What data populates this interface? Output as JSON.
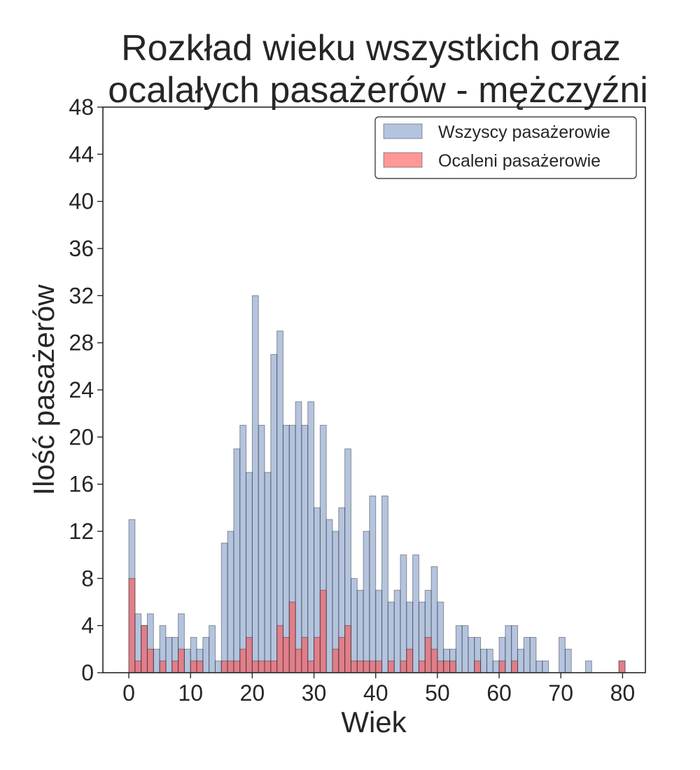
{
  "chart_data": {
    "type": "bar",
    "title_lines": [
      "Rozkład wieku wszystkich oraz",
      "ocalałych pasażerów - mężczyźni"
    ],
    "xlabel": "Wiek",
    "ylabel": "Ilość pasażerów",
    "xlim": [
      -4.2,
      83.7
    ],
    "ylim": [
      0,
      48
    ],
    "xticks": [
      0,
      10,
      20,
      30,
      40,
      50,
      60,
      70,
      80
    ],
    "yticks": [
      0,
      4,
      8,
      12,
      16,
      20,
      24,
      28,
      32,
      36,
      40,
      44,
      48
    ],
    "bin_width": 1.0,
    "legend": {
      "position": "top-right"
    },
    "grid": false,
    "series": [
      {
        "name": "Wszyscy pasażerowie",
        "color": "#4c72b0",
        "bins": [
          {
            "x": 0,
            "y": 13
          },
          {
            "x": 1,
            "y": 5
          },
          {
            "x": 2,
            "y": 4
          },
          {
            "x": 3,
            "y": 5
          },
          {
            "x": 4,
            "y": 2
          },
          {
            "x": 5,
            "y": 4
          },
          {
            "x": 6,
            "y": 3
          },
          {
            "x": 7,
            "y": 3
          },
          {
            "x": 8,
            "y": 5
          },
          {
            "x": 9,
            "y": 2
          },
          {
            "x": 10,
            "y": 3
          },
          {
            "x": 11,
            "y": 2
          },
          {
            "x": 12,
            "y": 3
          },
          {
            "x": 13,
            "y": 4
          },
          {
            "x": 14,
            "y": 1
          },
          {
            "x": 15,
            "y": 11
          },
          {
            "x": 16,
            "y": 12
          },
          {
            "x": 17,
            "y": 19
          },
          {
            "x": 18,
            "y": 21
          },
          {
            "x": 19,
            "y": 17
          },
          {
            "x": 20,
            "y": 32
          },
          {
            "x": 21,
            "y": 21
          },
          {
            "x": 22,
            "y": 17
          },
          {
            "x": 23,
            "y": 27
          },
          {
            "x": 24,
            "y": 29
          },
          {
            "x": 25,
            "y": 21
          },
          {
            "x": 26,
            "y": 21
          },
          {
            "x": 27,
            "y": 23
          },
          {
            "x": 28,
            "y": 21
          },
          {
            "x": 29,
            "y": 23
          },
          {
            "x": 30,
            "y": 14
          },
          {
            "x": 31,
            "y": 21
          },
          {
            "x": 32,
            "y": 13
          },
          {
            "x": 33,
            "y": 12
          },
          {
            "x": 34,
            "y": 14
          },
          {
            "x": 35,
            "y": 19
          },
          {
            "x": 36,
            "y": 8
          },
          {
            "x": 37,
            "y": 7
          },
          {
            "x": 38,
            "y": 12
          },
          {
            "x": 39,
            "y": 15
          },
          {
            "x": 40,
            "y": 7
          },
          {
            "x": 41,
            "y": 15
          },
          {
            "x": 42,
            "y": 6
          },
          {
            "x": 43,
            "y": 7
          },
          {
            "x": 44,
            "y": 10
          },
          {
            "x": 45,
            "y": 6
          },
          {
            "x": 46,
            "y": 10
          },
          {
            "x": 47,
            "y": 6
          },
          {
            "x": 48,
            "y": 7
          },
          {
            "x": 49,
            "y": 9
          },
          {
            "x": 50,
            "y": 6
          },
          {
            "x": 51,
            "y": 2
          },
          {
            "x": 52,
            "y": 2
          },
          {
            "x": 53,
            "y": 4
          },
          {
            "x": 54,
            "y": 4
          },
          {
            "x": 55,
            "y": 3
          },
          {
            "x": 56,
            "y": 3
          },
          {
            "x": 57,
            "y": 2
          },
          {
            "x": 58,
            "y": 2
          },
          {
            "x": 59,
            "y": 1
          },
          {
            "x": 60,
            "y": 3
          },
          {
            "x": 61,
            "y": 4
          },
          {
            "x": 62,
            "y": 4
          },
          {
            "x": 63,
            "y": 2
          },
          {
            "x": 64,
            "y": 3
          },
          {
            "x": 65,
            "y": 3
          },
          {
            "x": 66,
            "y": 1
          },
          {
            "x": 67,
            "y": 1
          },
          {
            "x": 69.7,
            "y": 3
          },
          {
            "x": 70.7,
            "y": 2
          },
          {
            "x": 74,
            "y": 1
          },
          {
            "x": 79.4,
            "y": 1
          }
        ]
      },
      {
        "name": "Ocaleni pasażerowie",
        "color": "#ff4d4d",
        "bins": [
          {
            "x": 0,
            "y": 8
          },
          {
            "x": 1,
            "y": 1
          },
          {
            "x": 2,
            "y": 4
          },
          {
            "x": 3,
            "y": 2
          },
          {
            "x": 5,
            "y": 1
          },
          {
            "x": 7,
            "y": 1
          },
          {
            "x": 8,
            "y": 2
          },
          {
            "x": 10,
            "y": 1
          },
          {
            "x": 11,
            "y": 1
          },
          {
            "x": 15,
            "y": 1
          },
          {
            "x": 16,
            "y": 1
          },
          {
            "x": 17,
            "y": 1
          },
          {
            "x": 18,
            "y": 2
          },
          {
            "x": 19,
            "y": 3
          },
          {
            "x": 20,
            "y": 1
          },
          {
            "x": 21,
            "y": 1
          },
          {
            "x": 22,
            "y": 1
          },
          {
            "x": 23,
            "y": 1
          },
          {
            "x": 24,
            "y": 4
          },
          {
            "x": 25,
            "y": 3
          },
          {
            "x": 26,
            "y": 6
          },
          {
            "x": 27,
            "y": 2
          },
          {
            "x": 28,
            "y": 3
          },
          {
            "x": 29,
            "y": 1
          },
          {
            "x": 30,
            "y": 3
          },
          {
            "x": 31,
            "y": 7
          },
          {
            "x": 33,
            "y": 2
          },
          {
            "x": 34,
            "y": 3
          },
          {
            "x": 35,
            "y": 4
          },
          {
            "x": 36,
            "y": 1
          },
          {
            "x": 37,
            "y": 1
          },
          {
            "x": 38,
            "y": 1
          },
          {
            "x": 39,
            "y": 1
          },
          {
            "x": 40,
            "y": 1
          },
          {
            "x": 42,
            "y": 1
          },
          {
            "x": 44,
            "y": 1
          },
          {
            "x": 45,
            "y": 2
          },
          {
            "x": 47,
            "y": 1
          },
          {
            "x": 48,
            "y": 3
          },
          {
            "x": 49,
            "y": 2
          },
          {
            "x": 50,
            "y": 1
          },
          {
            "x": 51,
            "y": 1
          },
          {
            "x": 52,
            "y": 1
          },
          {
            "x": 56,
            "y": 1
          },
          {
            "x": 60,
            "y": 1
          },
          {
            "x": 62,
            "y": 1
          },
          {
            "x": 79.4,
            "y": 1
          }
        ]
      }
    ]
  }
}
